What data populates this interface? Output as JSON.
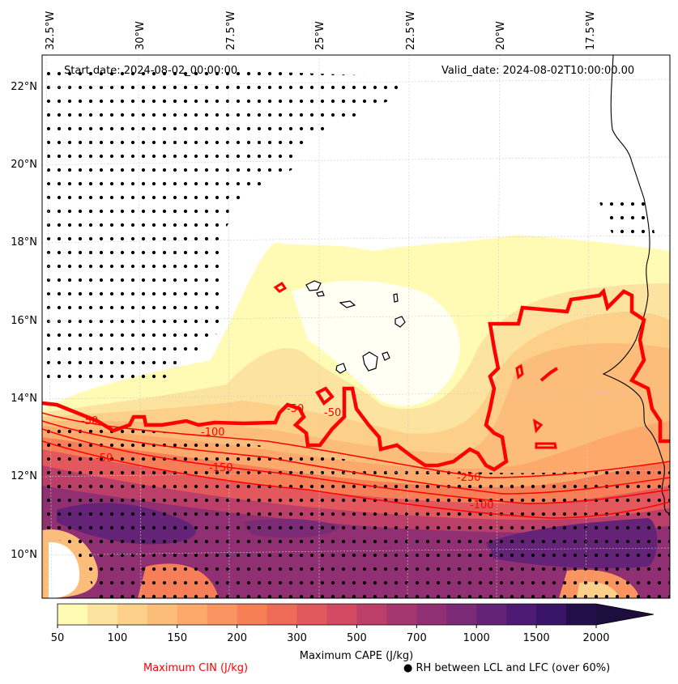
{
  "map": {
    "start_date": "Start date: 2024-08-02_00:00:00",
    "valid_date": "Valid_date: 2024-08-02T10:00:00.00",
    "lon_labels": [
      "32.5°W",
      "30°W",
      "27.5°W",
      "25°W",
      "22.5°W",
      "20°W",
      "17.5°W"
    ],
    "lat_labels": [
      "22°N",
      "20°N",
      "18°N",
      "16°N",
      "14°N",
      "12°N",
      "10°N"
    ],
    "cin_contour_labels": [
      "-50",
      "-50",
      "-100",
      "-150",
      "-250",
      "-100",
      "-50",
      "-50"
    ]
  },
  "colorbar": {
    "tick_labels": [
      "50",
      "100",
      "150",
      "200",
      "300",
      "500",
      "700",
      "1000",
      "1500",
      "2000"
    ],
    "levels": [
      50,
      75,
      100,
      125,
      150,
      175,
      200,
      250,
      300,
      400,
      500,
      600,
      700,
      800,
      1000,
      1250,
      1500,
      1750,
      2000
    ],
    "colors": [
      "#fffbb5",
      "#fde3a0",
      "#fdd08a",
      "#fdbd7a",
      "#fca96b",
      "#fa9460",
      "#f67f58",
      "#ee6b57",
      "#e2585c",
      "#d14a62",
      "#bc3f69",
      "#a6376e",
      "#903072",
      "#7b2a75",
      "#652378",
      "#4e1b74",
      "#391467",
      "#230f4a"
    ],
    "extend": "max",
    "label": "Maximum CAPE (J/kg)"
  },
  "legend": {
    "cin": "Maximum CIN (J/kg)",
    "rh": "RH between LCL and LFC (over 60%)",
    "rh_marker": "●"
  },
  "styles": {
    "cin_color": "#ff0000",
    "coast_color": "#000000"
  }
}
